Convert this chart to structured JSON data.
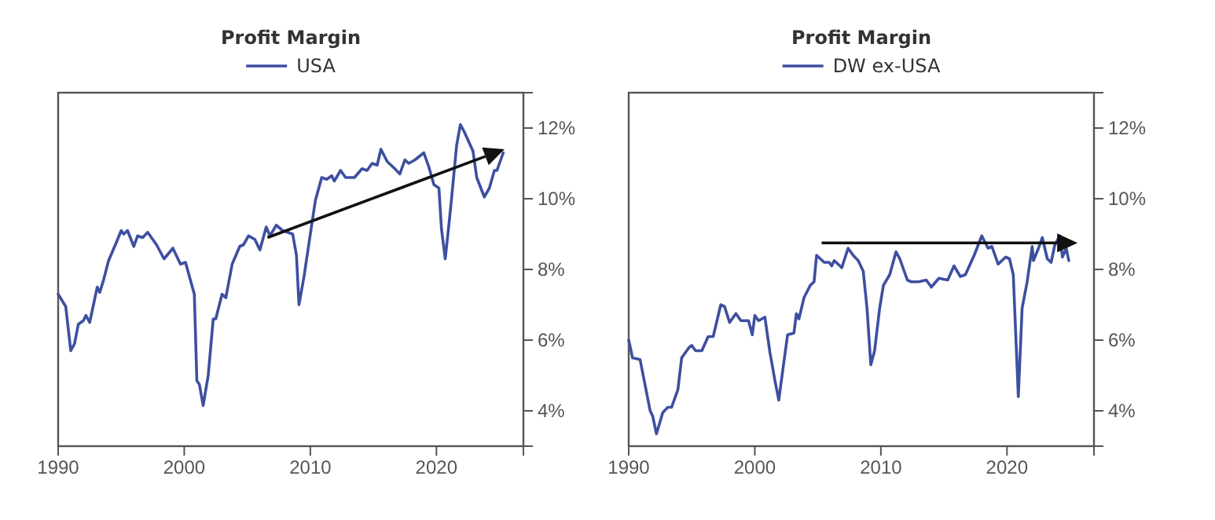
{
  "chart_data": [
    {
      "type": "line",
      "title": "Profit Margin",
      "legend": "top",
      "grid": false,
      "xlim": [
        1990,
        2026.9
      ],
      "xticks": [
        1990,
        2000,
        2010,
        2020
      ],
      "ylim": [
        3,
        13
      ],
      "yticks": [
        {
          "value": 4,
          "label": "4%"
        },
        {
          "value": 6,
          "label": "6%"
        },
        {
          "value": 8,
          "label": "8%"
        },
        {
          "value": 10,
          "label": "10%"
        },
        {
          "value": 12,
          "label": "12%"
        }
      ],
      "series": [
        {
          "name": "USA",
          "color": "#3d4fa0",
          "x": [
            1990.0,
            1990.6,
            1991.0,
            1991.3,
            1991.6,
            1992.0,
            1992.2,
            1992.5,
            1993.1,
            1993.3,
            1993.6,
            1994.0,
            1994.6,
            1995.0,
            1995.2,
            1995.5,
            1996.0,
            1996.3,
            1996.7,
            1997.1,
            1997.8,
            1998.4,
            1999.1,
            1999.7,
            2000.1,
            2000.8,
            2001.0,
            2001.2,
            2001.5,
            2001.9,
            2002.3,
            2002.5,
            2003.0,
            2003.3,
            2003.8,
            2004.4,
            2004.7,
            2005.1,
            2005.6,
            2006.0,
            2006.5,
            2006.8,
            2007.3,
            2007.8,
            2008.6,
            2008.9,
            2009.1,
            2009.5,
            2010.0,
            2010.4,
            2010.9,
            2011.3,
            2011.7,
            2011.9,
            2012.4,
            2012.8,
            2013.5,
            2014.1,
            2014.5,
            2014.9,
            2015.3,
            2015.6,
            2016.1,
            2016.7,
            2017.1,
            2017.5,
            2017.8,
            2018.3,
            2019.0,
            2019.4,
            2019.8,
            2020.2,
            2020.4,
            2020.7,
            2021.0,
            2021.2,
            2021.6,
            2021.9,
            2022.2,
            2022.9,
            2023.2,
            2023.8,
            2024.2,
            2024.6,
            2024.8,
            2025.3
          ],
          "values": [
            7.3,
            6.95,
            5.7,
            5.9,
            6.45,
            6.55,
            6.7,
            6.5,
            7.5,
            7.35,
            7.7,
            8.25,
            8.75,
            9.1,
            9.0,
            9.1,
            8.65,
            8.95,
            8.9,
            9.05,
            8.7,
            8.3,
            8.6,
            8.15,
            8.2,
            7.3,
            4.85,
            4.75,
            4.15,
            5.0,
            6.6,
            6.6,
            7.3,
            7.2,
            8.15,
            8.65,
            8.7,
            8.95,
            8.85,
            8.55,
            9.2,
            8.95,
            9.25,
            9.1,
            9.0,
            8.4,
            7.0,
            7.8,
            9.0,
            9.95,
            10.6,
            10.55,
            10.65,
            10.5,
            10.8,
            10.6,
            10.6,
            10.85,
            10.8,
            11.0,
            10.95,
            11.4,
            11.05,
            10.85,
            10.7,
            11.1,
            11.0,
            11.1,
            11.3,
            10.9,
            10.4,
            10.3,
            9.15,
            8.3,
            9.3,
            10.0,
            11.5,
            12.1,
            11.9,
            11.35,
            10.6,
            10.05,
            10.3,
            10.8,
            10.8,
            11.3
          ]
        }
      ]
    },
    {
      "type": "line",
      "title": "Profit Margin",
      "legend": "top",
      "grid": false,
      "xlim": [
        1990,
        2026.9
      ],
      "xticks": [
        1990,
        2000,
        2010,
        2020
      ],
      "ylim": [
        3,
        13
      ],
      "yticks": [
        {
          "value": 4,
          "label": "4%"
        },
        {
          "value": 6,
          "label": "6%"
        },
        {
          "value": 8,
          "label": "8%"
        },
        {
          "value": 10,
          "label": "10%"
        },
        {
          "value": 12,
          "label": "12%"
        }
      ],
      "series": [
        {
          "name": "DW ex-USA",
          "color": "#3d4fa0",
          "x": [
            1990.0,
            1990.3,
            1990.9,
            1991.7,
            1991.9,
            1992.2,
            1992.7,
            1993.1,
            1993.4,
            1993.9,
            1994.2,
            1994.8,
            1995.0,
            1995.3,
            1995.8,
            1996.3,
            1996.7,
            1997.3,
            1997.6,
            1998.0,
            1998.5,
            1998.9,
            1999.5,
            1999.8,
            2000.0,
            2000.3,
            2000.8,
            2001.2,
            2001.6,
            2001.9,
            2002.2,
            2002.6,
            2003.1,
            2003.3,
            2003.5,
            2003.9,
            2004.4,
            2004.7,
            2004.9,
            2005.5,
            2005.9,
            2006.1,
            2006.3,
            2006.9,
            2007.4,
            2007.8,
            2008.2,
            2008.6,
            2008.9,
            2009.2,
            2009.5,
            2009.9,
            2010.2,
            2010.7,
            2011.2,
            2011.5,
            2012.1,
            2012.4,
            2013.0,
            2013.6,
            2014.0,
            2014.6,
            2015.3,
            2015.8,
            2016.3,
            2016.7,
            2017.4,
            2018.0,
            2018.5,
            2018.8,
            2019.3,
            2019.9,
            2020.2,
            2020.5,
            2020.9,
            2021.2,
            2021.6,
            2022.0,
            2022.1,
            2022.5,
            2022.8,
            2023.2,
            2023.5,
            2023.8,
            2024.2,
            2024.4,
            2024.7,
            2024.9
          ],
          "values": [
            6.0,
            5.5,
            5.45,
            4.0,
            3.85,
            3.35,
            3.95,
            4.1,
            4.1,
            4.6,
            5.5,
            5.8,
            5.85,
            5.7,
            5.7,
            6.1,
            6.1,
            7.0,
            6.95,
            6.5,
            6.75,
            6.55,
            6.55,
            6.15,
            6.7,
            6.55,
            6.65,
            5.65,
            4.85,
            4.3,
            5.1,
            6.15,
            6.2,
            6.75,
            6.6,
            7.2,
            7.55,
            7.65,
            8.4,
            8.2,
            8.2,
            8.1,
            8.25,
            8.05,
            8.6,
            8.4,
            8.25,
            7.95,
            6.9,
            5.3,
            5.7,
            6.9,
            7.55,
            7.85,
            8.5,
            8.3,
            7.7,
            7.65,
            7.65,
            7.7,
            7.5,
            7.75,
            7.7,
            8.1,
            7.8,
            7.85,
            8.4,
            8.95,
            8.6,
            8.65,
            8.15,
            8.35,
            8.3,
            7.85,
            4.4,
            6.9,
            7.65,
            8.65,
            8.25,
            8.6,
            8.9,
            8.3,
            8.2,
            8.7,
            8.95,
            8.35,
            8.6,
            8.25
          ]
        }
      ]
    }
  ]
}
